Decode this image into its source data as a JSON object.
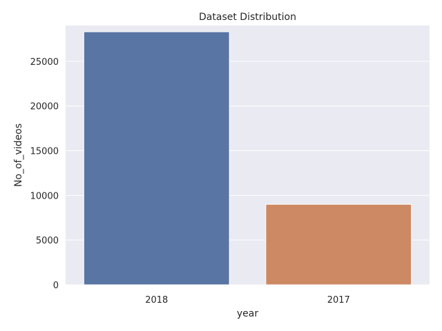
{
  "chart_data": {
    "type": "bar",
    "title": "Dataset Distribution",
    "xlabel": "year",
    "ylabel": "No_of_videos",
    "categories": [
      "2018",
      "2017"
    ],
    "values": [
      28300,
      9000
    ],
    "ylim": [
      0,
      29000
    ],
    "yticks": [
      0,
      5000,
      10000,
      15000,
      20000,
      25000
    ],
    "ytick_labels": [
      "0",
      "5000",
      "10000",
      "15000",
      "20000",
      "25000"
    ],
    "grid": true,
    "colors": {
      "plot_background": "#eaeaf2",
      "grid": "#ffffff",
      "bars": [
        "#5975a4",
        "#cc8963"
      ],
      "text": "#262626"
    }
  }
}
